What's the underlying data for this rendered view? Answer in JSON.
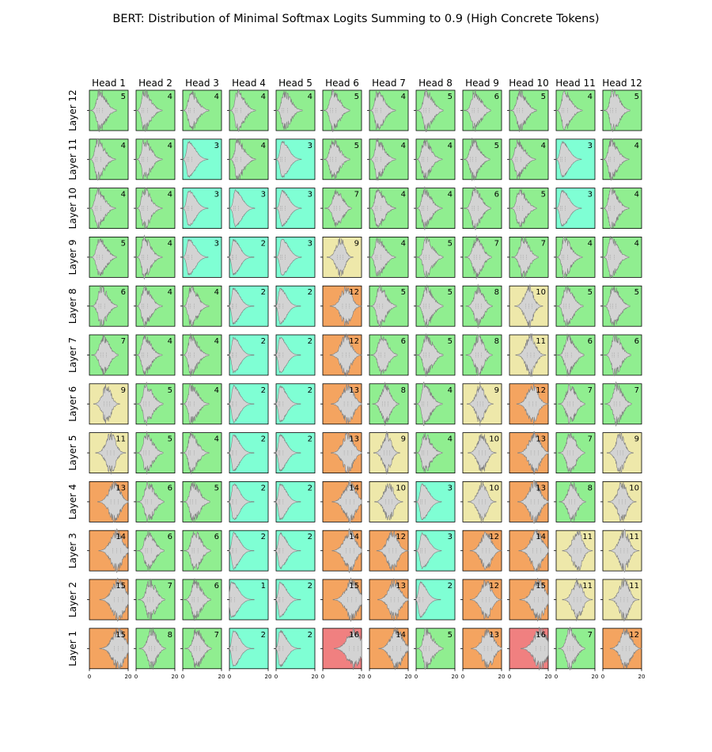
{
  "chart_data": {
    "type": "violin-grid",
    "title": "BERT: Distribution of Minimal Softmax Logits Summing to 0.9 (High Concrete Tokens)",
    "col_labels": [
      "Head 1",
      "Head 2",
      "Head 3",
      "Head 4",
      "Head 5",
      "Head 6",
      "Head 7",
      "Head 8",
      "Head 9",
      "Head 10",
      "Head 11",
      "Head 12"
    ],
    "row_labels": [
      "Layer 12",
      "Layer 11",
      "Layer 10",
      "Layer 9",
      "Layer 8",
      "Layer 7",
      "Layer 6",
      "Layer 5",
      "Layer 4",
      "Layer 3",
      "Layer 2",
      "Layer 1"
    ],
    "xlim": [
      0,
      20
    ],
    "x_ticks": [
      "0",
      "20"
    ],
    "values": [
      [
        5,
        4,
        4,
        4,
        4,
        5,
        4,
        5,
        6,
        5,
        4,
        5
      ],
      [
        4,
        4,
        3,
        4,
        3,
        5,
        4,
        4,
        5,
        4,
        3,
        4
      ],
      [
        4,
        4,
        3,
        3,
        3,
        7,
        4,
        4,
        6,
        5,
        3,
        4
      ],
      [
        5,
        4,
        3,
        2,
        3,
        9,
        4,
        5,
        7,
        7,
        4,
        4
      ],
      [
        6,
        4,
        4,
        2,
        2,
        12,
        5,
        5,
        8,
        10,
        5,
        5
      ],
      [
        7,
        4,
        4,
        2,
        2,
        12,
        6,
        5,
        8,
        11,
        6,
        6
      ],
      [
        9,
        5,
        4,
        2,
        2,
        13,
        8,
        4,
        9,
        12,
        7,
        7
      ],
      [
        11,
        5,
        4,
        2,
        2,
        13,
        9,
        4,
        10,
        13,
        7,
        9
      ],
      [
        13,
        6,
        5,
        2,
        2,
        14,
        10,
        3,
        10,
        13,
        8,
        10
      ],
      [
        14,
        6,
        6,
        2,
        2,
        14,
        12,
        3,
        12,
        14,
        11,
        11
      ],
      [
        15,
        7,
        6,
        1,
        2,
        15,
        13,
        2,
        12,
        15,
        11,
        11
      ],
      [
        15,
        8,
        7,
        2,
        2,
        16,
        14,
        5,
        13,
        16,
        7,
        12
      ]
    ],
    "color_scale": [
      {
        "max": 3,
        "color": "#7fffd4"
      },
      {
        "max": 8,
        "color": "#90ee90"
      },
      {
        "max": 11,
        "color": "#eee8aa"
      },
      {
        "max": 15,
        "color": "#f4a460"
      },
      {
        "max": 99,
        "color": "#f08080"
      }
    ],
    "violin_fill": "#d3d3d3",
    "violin_edge": "#808080"
  }
}
